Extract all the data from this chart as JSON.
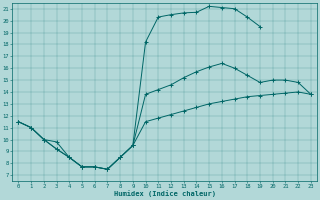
{
  "xlabel": "Humidex (Indice chaleur)",
  "bg_color": "#b2d8d8",
  "line_color": "#006666",
  "xlim": [
    -0.5,
    23.5
  ],
  "ylim": [
    6.5,
    21.5
  ],
  "xticks": [
    0,
    1,
    2,
    3,
    4,
    5,
    6,
    7,
    8,
    9,
    10,
    11,
    12,
    13,
    14,
    15,
    16,
    17,
    18,
    19,
    20,
    21,
    22,
    23
  ],
  "yticks": [
    7,
    8,
    9,
    10,
    11,
    12,
    13,
    14,
    15,
    16,
    17,
    18,
    19,
    20,
    21
  ],
  "curves": [
    {
      "x": [
        0,
        1,
        2,
        3,
        4,
        5,
        6,
        7,
        8,
        9,
        10,
        11,
        12,
        13,
        14,
        15,
        16,
        17,
        18,
        19
      ],
      "y": [
        11.5,
        11.0,
        10.0,
        9.8,
        8.5,
        7.7,
        7.7,
        7.5,
        8.5,
        9.5,
        18.2,
        20.3,
        20.5,
        20.65,
        20.7,
        21.2,
        21.1,
        21.0,
        20.3,
        19.5
      ]
    },
    {
      "x": [
        0,
        1,
        2,
        3,
        4,
        5,
        6,
        7,
        8,
        9,
        10,
        11,
        12,
        13,
        14,
        15,
        16,
        17,
        18,
        19,
        20,
        21,
        22,
        23
      ],
      "y": [
        11.5,
        11.0,
        10.0,
        9.2,
        8.5,
        7.7,
        7.7,
        7.5,
        8.5,
        9.5,
        13.8,
        14.2,
        14.6,
        15.2,
        15.7,
        16.1,
        16.4,
        16.0,
        15.4,
        14.8,
        15.0,
        15.0,
        14.8,
        13.8
      ]
    },
    {
      "x": [
        0,
        1,
        2,
        3,
        4,
        5,
        6,
        7,
        8,
        9,
        10,
        11,
        12,
        13,
        14,
        15,
        16,
        17,
        18,
        19,
        20,
        21,
        22,
        23
      ],
      "y": [
        11.5,
        11.0,
        10.0,
        9.2,
        8.5,
        7.7,
        7.7,
        7.5,
        8.5,
        9.5,
        11.5,
        11.8,
        12.1,
        12.4,
        12.7,
        13.0,
        13.2,
        13.4,
        13.6,
        13.7,
        13.8,
        13.9,
        14.0,
        13.8
      ]
    }
  ]
}
